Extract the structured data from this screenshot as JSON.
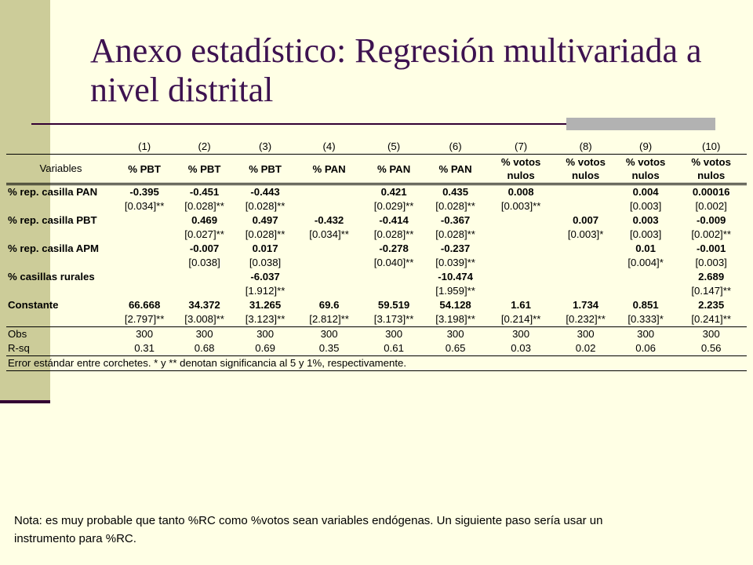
{
  "slide": {
    "title": "Anexo estadístico: Regresión multivariada a nivel distrital",
    "note": "Nota: es muy probable que tanto %RC como %votos sean variables endógenas.  Un siguiente paso sería usar un instrumento para %RC."
  },
  "table": {
    "model_numbers": [
      "(1)",
      "(2)",
      "(3)",
      "(4)",
      "(5)",
      "(6)",
      "(7)",
      "(8)",
      "(9)",
      "(10)"
    ],
    "variables_label": "Variables",
    "dep_vars": [
      "% PBT",
      "% PBT",
      "% PBT",
      "% PAN",
      "% PAN",
      "% PAN",
      "% votos nulos",
      "% votos nulos",
      "% votos nulos",
      "% votos nulos"
    ],
    "rows": [
      {
        "name": "% rep. casilla PAN",
        "coef": [
          "-0.395",
          "-0.451",
          "-0.443",
          "",
          "0.421",
          "0.435",
          "0.008",
          "",
          "0.004",
          "0.00016"
        ],
        "se": [
          "[0.034]**",
          "[0.028]**",
          "[0.028]**",
          "",
          "[0.029]**",
          "[0.028]**",
          "[0.003]**",
          "",
          "[0.003]",
          "[0.002]"
        ]
      },
      {
        "name": "% rep. casilla PBT",
        "coef": [
          "",
          "0.469",
          "0.497",
          "-0.432",
          "-0.414",
          "-0.367",
          "",
          "0.007",
          "0.003",
          "-0.009"
        ],
        "se": [
          "",
          "[0.027]**",
          "[0.028]**",
          "[0.034]**",
          "[0.028]**",
          "[0.028]**",
          "",
          "[0.003]*",
          "[0.003]",
          "[0.002]**"
        ]
      },
      {
        "name": "% rep. casilla APM",
        "coef": [
          "",
          "-0.007",
          "0.017",
          "",
          "-0.278",
          "-0.237",
          "",
          "",
          "0.01",
          "-0.001"
        ],
        "se": [
          "",
          "[0.038]",
          "[0.038]",
          "",
          "[0.040]**",
          "[0.039]**",
          "",
          "",
          "[0.004]*",
          "[0.003]"
        ]
      },
      {
        "name": "% casillas rurales",
        "coef": [
          "",
          "",
          "-6.037",
          "",
          "",
          "-10.474",
          "",
          "",
          "",
          "2.689"
        ],
        "se": [
          "",
          "",
          "[1.912]**",
          "",
          "",
          "[1.959]**",
          "",
          "",
          "",
          "[0.147]**"
        ]
      },
      {
        "name": "Constante",
        "coef": [
          "66.668",
          "34.372",
          "31.265",
          "69.6",
          "59.519",
          "54.128",
          "1.61",
          "1.734",
          "0.851",
          "2.235"
        ],
        "se": [
          "[2.797]**",
          "[3.008]**",
          "[3.123]**",
          "[2.812]**",
          "[3.173]**",
          "[3.198]**",
          "[0.214]**",
          "[0.232]**",
          "[0.333]*",
          "[0.241]**"
        ]
      }
    ],
    "obs_label": "Obs",
    "obs": [
      "300",
      "300",
      "300",
      "300",
      "300",
      "300",
      "300",
      "300",
      "300",
      "300"
    ],
    "rsq_label": "R-sq",
    "rsq": [
      "0.31",
      "0.68",
      "0.69",
      "0.35",
      "0.61",
      "0.65",
      "0.03",
      "0.02",
      "0.06",
      "0.56"
    ],
    "footnote": "Error estándar entre corchetes.  * y ** denotan significancia al 5 y 1%, respectivamente."
  }
}
